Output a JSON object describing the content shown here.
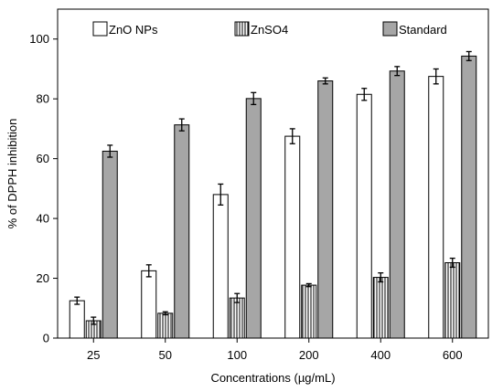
{
  "chart_data": {
    "type": "bar",
    "title": "",
    "xlabel": "Concentrations (µg/mL)",
    "ylabel": "% of DPPH inhibition",
    "categories": [
      "25",
      "50",
      "100",
      "200",
      "400",
      "600"
    ],
    "ylim": [
      0,
      110
    ],
    "yticks": [
      0,
      20,
      40,
      60,
      80,
      100
    ],
    "grid": false,
    "legend": "top",
    "series": [
      {
        "name": "ZnO NPs",
        "values": [
          12.5,
          22.5,
          48,
          67.5,
          81.5,
          87.5
        ],
        "errors": [
          1.2,
          2.0,
          3.5,
          2.5,
          2.0,
          2.5
        ]
      },
      {
        "name": "ZnSO4",
        "values": [
          5.8,
          8.3,
          13.4,
          17.7,
          20.3,
          25.2
        ],
        "errors": [
          1.2,
          0.5,
          1.5,
          0.5,
          1.5,
          1.5
        ]
      },
      {
        "name": "Standard",
        "values": [
          62.5,
          71.3,
          80.1,
          86,
          89.3,
          94.3
        ],
        "errors": [
          2.0,
          2.0,
          2.0,
          1.0,
          1.5,
          1.5
        ]
      }
    ]
  }
}
